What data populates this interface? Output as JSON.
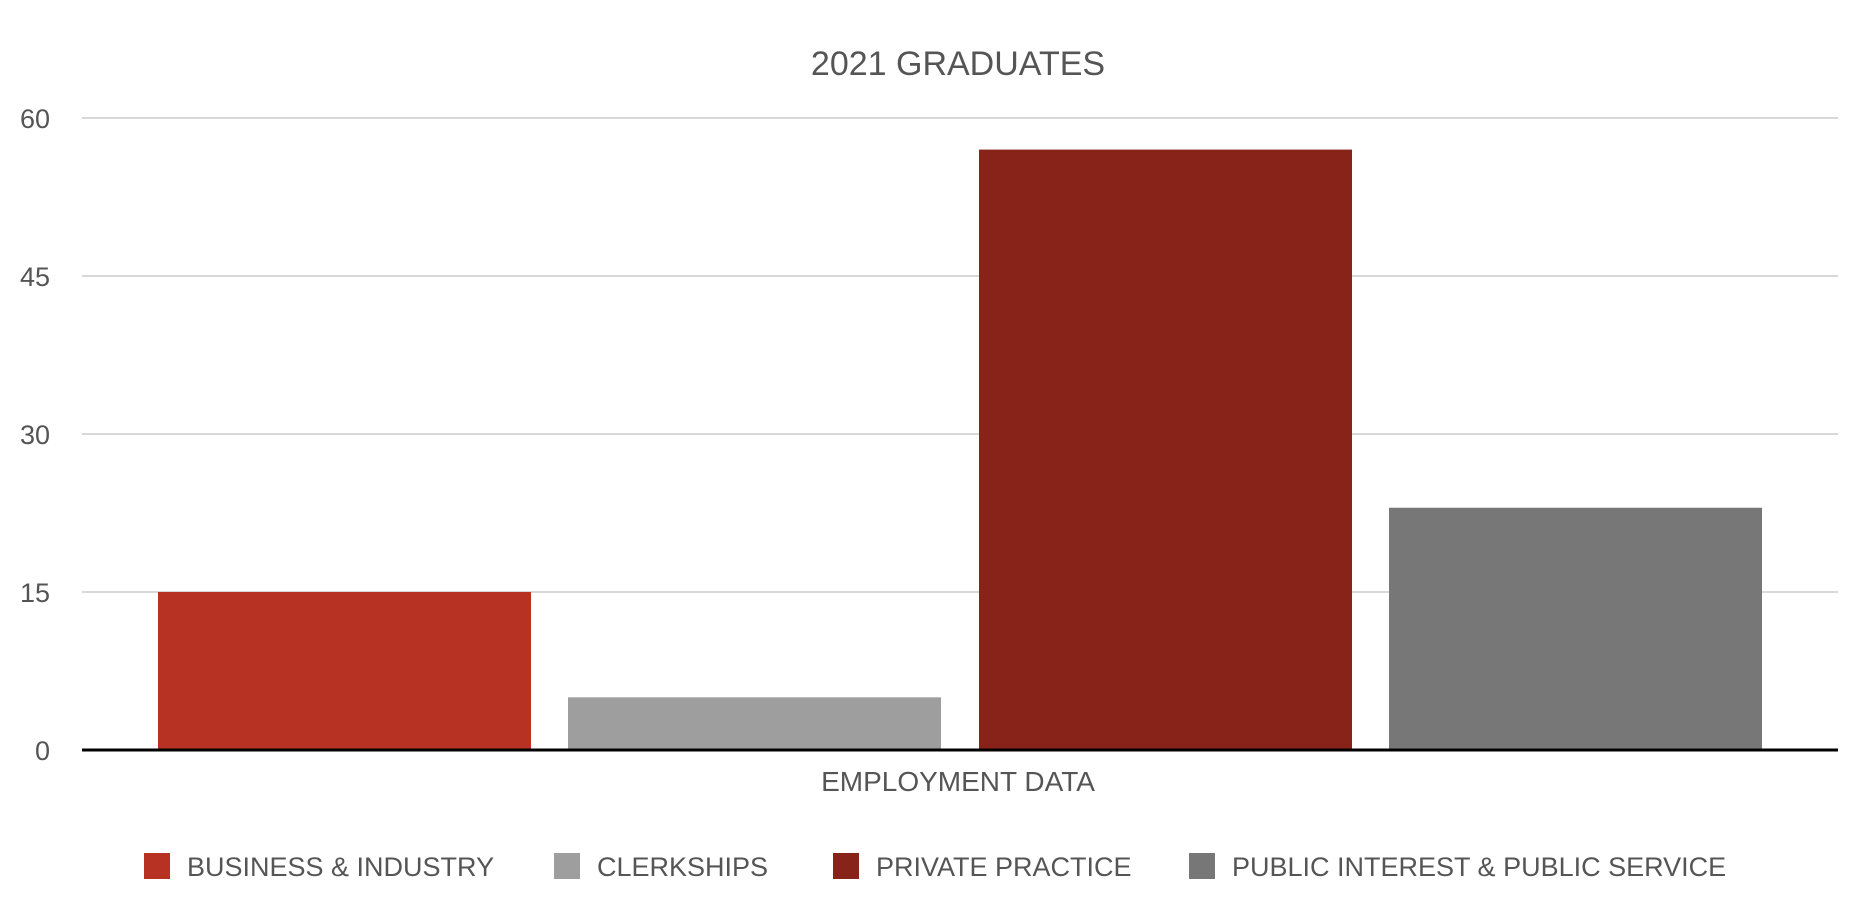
{
  "chart_data": {
    "type": "bar",
    "title": "2021 GRADUATES",
    "xlabel": "EMPLOYMENT DATA",
    "ylabel": "",
    "categories": [
      "EMPLOYMENT DATA"
    ],
    "series": [
      {
        "name": "BUSINESS & INDUSTRY",
        "values": [
          15
        ],
        "color": "#b83224"
      },
      {
        "name": "CLERKSHIPS",
        "values": [
          5
        ],
        "color": "#9e9e9e"
      },
      {
        "name": "PRIVATE PRACTICE",
        "values": [
          57
        ],
        "color": "#88231a"
      },
      {
        "name": "PUBLIC INTEREST & PUBLIC SERVICE",
        "values": [
          23
        ],
        "color": "#777777"
      }
    ],
    "ylim": [
      0,
      60
    ],
    "yticks": [
      0,
      15,
      30,
      45,
      60
    ],
    "ytick_labels": [
      "0",
      "15",
      "30",
      "45",
      "60"
    ],
    "grid": true,
    "legend_position": "bottom"
  }
}
